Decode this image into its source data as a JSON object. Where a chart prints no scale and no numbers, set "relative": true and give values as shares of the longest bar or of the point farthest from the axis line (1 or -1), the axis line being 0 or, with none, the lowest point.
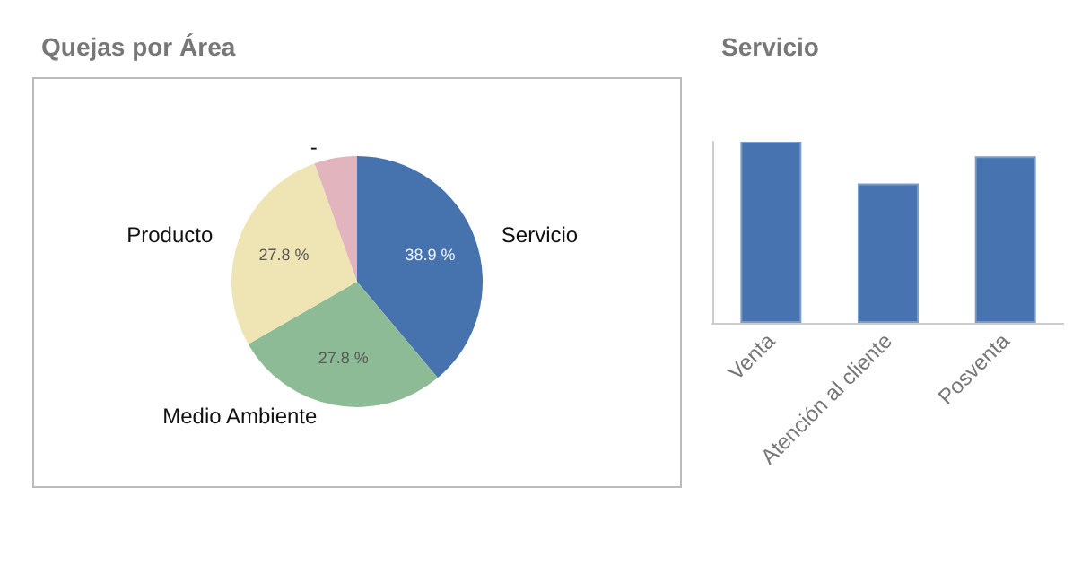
{
  "chart_data": [
    {
      "type": "pie",
      "title": "Quejas por Área",
      "categories": [
        "Servicio",
        "Medio Ambiente",
        "Producto",
        "-"
      ],
      "values": [
        38.9,
        27.8,
        27.8,
        5.5
      ],
      "colors": [
        "#4673ad",
        "#8cbb96",
        "#efe4b4",
        "#e2b4bd"
      ],
      "value_labels": [
        "38.9 %",
        "27.8 %",
        "27.8 %",
        null
      ],
      "legend": false
    },
    {
      "type": "bar",
      "title": "Servicio",
      "categories": [
        "Venta",
        "Atención al cliente",
        "Posventa"
      ],
      "values": [
        1,
        0.77,
        0.92
      ],
      "color": "#4774b0",
      "relative": true,
      "legend": false
    }
  ]
}
